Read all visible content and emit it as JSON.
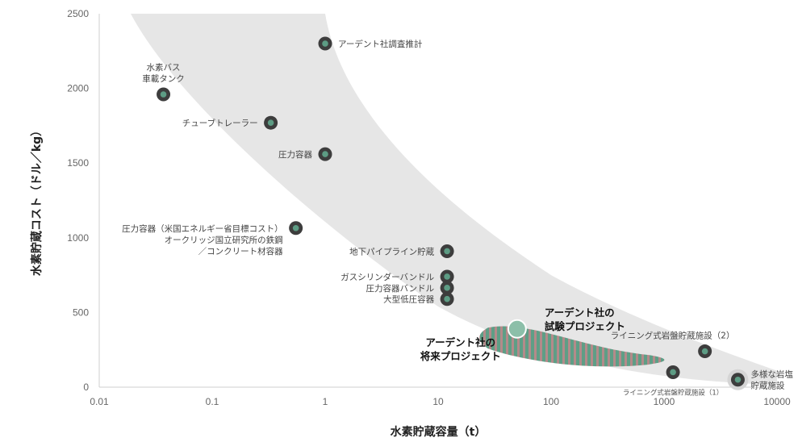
{
  "chart_data": {
    "type": "scatter",
    "xlabel": "水素貯蔵容量（t）",
    "ylabel": "水素貯蔵コスト（ドル／kg）",
    "x_scale": "log",
    "xlim": [
      0.01,
      10000
    ],
    "ylim": [
      0,
      2500
    ],
    "x_ticks": [
      {
        "value": 0.01,
        "label": "0.01"
      },
      {
        "value": 0.1,
        "label": "0.1"
      },
      {
        "value": 1,
        "label": "1"
      },
      {
        "value": 10,
        "label": "10"
      },
      {
        "value": 100,
        "label": "100"
      },
      {
        "value": 1000,
        "label": "1000"
      },
      {
        "value": 10000,
        "label": "10000"
      }
    ],
    "y_ticks": [
      {
        "value": 0,
        "label": "0"
      },
      {
        "value": 500,
        "label": "500"
      },
      {
        "value": 1000,
        "label": "1000"
      },
      {
        "value": 1500,
        "label": "1500"
      },
      {
        "value": 2000,
        "label": "2000"
      },
      {
        "value": 2500,
        "label": "2500"
      }
    ],
    "colors": {
      "band": "#e6e6e6",
      "marker_outer": "#3d3d3d",
      "marker_inner": "#5d9c84",
      "ardent_pilot": "#8cbfa9",
      "ardent_future_a": "#5e9e86",
      "ardent_future_b": "#b48a8a"
    },
    "points": [
      {
        "x": 1,
        "y": 2300,
        "lines": [
          "アーデント社調査推計"
        ],
        "anchor": "right"
      },
      {
        "x": 0.037,
        "y": 1960,
        "lines": [
          "水素バス",
          "車載タンク"
        ],
        "anchor": "above"
      },
      {
        "x": 0.33,
        "y": 1770,
        "lines": [
          "チューブトレーラー"
        ],
        "anchor": "left"
      },
      {
        "x": 1,
        "y": 1560,
        "lines": [
          "圧力容器"
        ],
        "anchor": "left"
      },
      {
        "x": 0.55,
        "y": 1065,
        "lines": [
          "圧力容器（米国エネルギー省目標コスト）",
          "オークリッジ国立研究所の鉄鋼",
          "／コンクリート材容器"
        ],
        "anchor": "left"
      },
      {
        "x": 12,
        "y": 910,
        "lines": [
          "地下パイプライン貯蔵"
        ],
        "anchor": "left"
      },
      {
        "x": 12,
        "y": 740,
        "lines": [
          "ガスシリンダーバンドル"
        ],
        "anchor": "left"
      },
      {
        "x": 12,
        "y": 665,
        "lines": [
          "圧力容器バンドル"
        ],
        "anchor": "left"
      },
      {
        "x": 12,
        "y": 590,
        "lines": [
          "大型低圧容器"
        ],
        "anchor": "left"
      },
      {
        "x": 2300,
        "y": 240,
        "lines": [
          "ライニング式岩盤貯蔵施設（2）"
        ],
        "anchor": "above"
      },
      {
        "x": 1200,
        "y": 100,
        "lines": [
          "ライニング式岩盤貯蔵施設（1）"
        ],
        "anchor": "below",
        "small": true
      },
      {
        "x": 4500,
        "y": 50,
        "lines": [
          "多様な岩塩",
          "貯蔵施設"
        ],
        "anchor": "right",
        "halo": true
      }
    ],
    "ardent_pilot": {
      "x": 50,
      "y": 390,
      "lines": [
        "アーデント社の",
        "試験プロジェクト"
      ]
    },
    "ardent_future": {
      "x_range": [
        25,
        1000
      ],
      "y_range": [
        140,
        420
      ],
      "lines": [
        "アーデント社の",
        "将来プロジェクト"
      ]
    }
  }
}
